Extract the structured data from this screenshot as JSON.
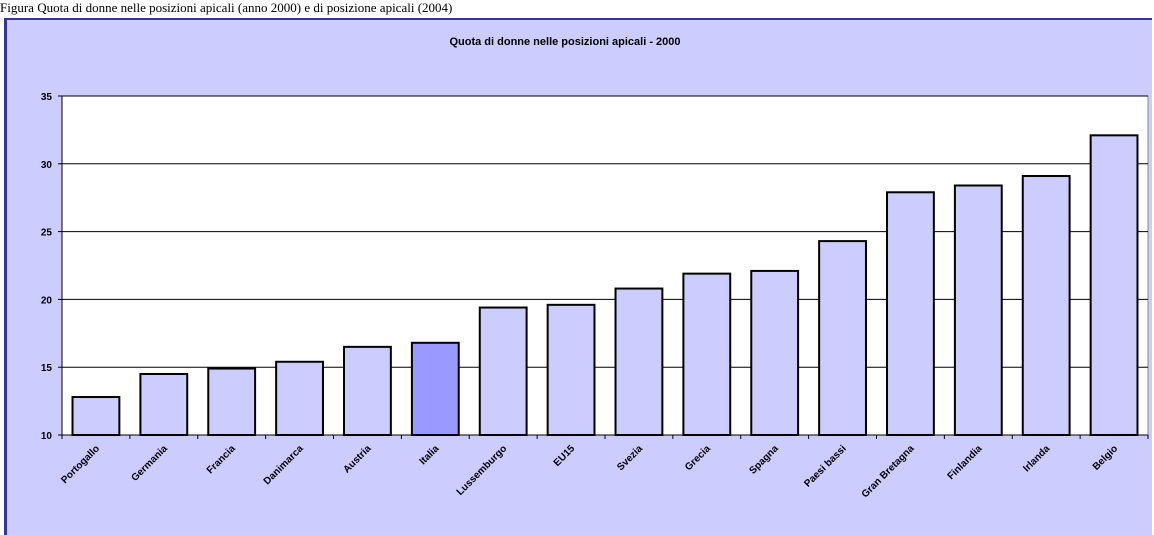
{
  "caption": "Figura Quota di donne nelle posizioni apicali (anno 2000) e di posizione apicali (2004)",
  "chart_data": {
    "type": "bar",
    "title": "Quota di donne nelle posizioni apicali -  2000",
    "xlabel": "",
    "ylabel": "",
    "categories": [
      "Portogallo",
      "Germania",
      "Francia",
      "Danimarca",
      "Austria",
      "Italia",
      "Lussemburgo",
      "EU15",
      "Svezia",
      "Grecia",
      "Spagna",
      "Paesi bassi",
      "Gran Bretagna",
      "Finlandia",
      "Irlanda",
      "Belgio"
    ],
    "values": [
      12.8,
      14.5,
      14.9,
      15.4,
      16.5,
      16.8,
      19.4,
      19.6,
      20.8,
      21.9,
      22.1,
      24.3,
      27.9,
      28.4,
      29.1,
      32.1
    ],
    "ylim": [
      10,
      35
    ],
    "yticks": [
      10,
      15,
      20,
      25,
      30,
      35
    ],
    "grid": true,
    "legend": "none",
    "colors": {
      "bar": "#ccccff",
      "highlight_bar": "#9999ff",
      "plot_background": "#ffffff",
      "frame_background": "#ccccff"
    },
    "highlight_category": "Italia"
  }
}
